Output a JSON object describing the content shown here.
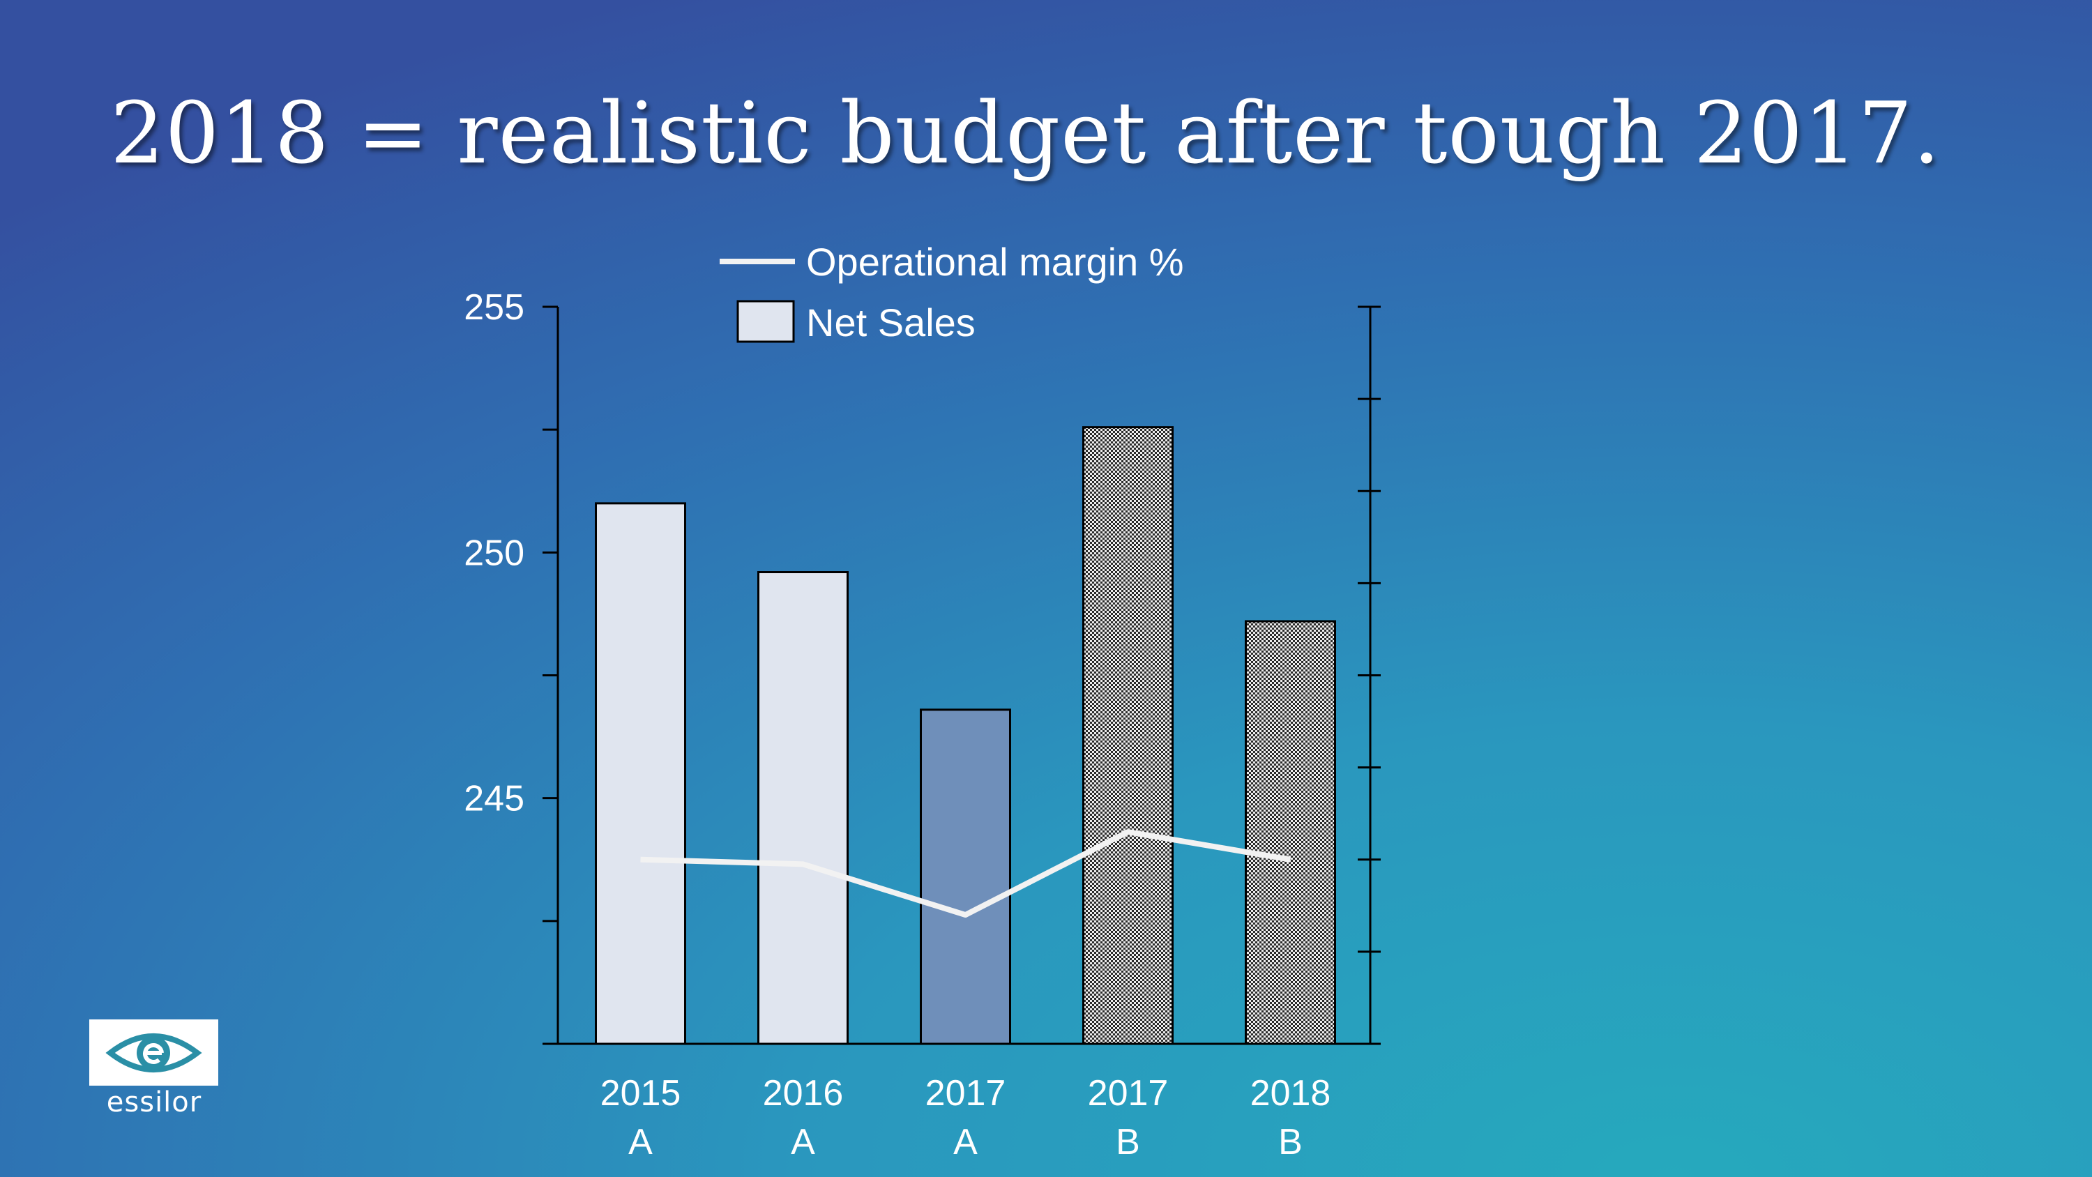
{
  "slide": {
    "title": "2018 = realistic budget after tough 2017.",
    "logo_text": "essilor"
  },
  "colors": {
    "actual_bar": "#e0e5ef",
    "tough_year_bar": "#6f8fba",
    "budget_bar_pattern": "checkered",
    "margin_line": "#f2f2f2"
  },
  "chart_data": {
    "type": "bar",
    "categories": [
      [
        "2015",
        "A"
      ],
      [
        "2016",
        "A"
      ],
      [
        "2017",
        "A"
      ],
      [
        "2017",
        "B"
      ],
      [
        "2018",
        "B"
      ]
    ],
    "series": [
      {
        "name": "Net Sales",
        "type": "bar",
        "axis": "left",
        "values": [
          251,
          249.6,
          246.8,
          252.55,
          248.6
        ],
        "styles": [
          "light",
          "light",
          "medium",
          "checkered",
          "checkered"
        ]
      },
      {
        "name": "Operational margin %",
        "type": "line",
        "axis": "right",
        "values": [
          2.0,
          1.95,
          1.4,
          2.3,
          2.0
        ]
      }
    ],
    "y_left": {
      "min": 240,
      "max": 255,
      "tick_values": [
        255,
        250,
        245
      ],
      "ticks": [
        "255",
        "250",
        "245"
      ]
    },
    "y_right": {
      "min": 0,
      "max": 8,
      "tick_labels_shown": false
    },
    "legend": {
      "placement": "top-center",
      "entries": [
        "Operational margin %",
        "Net Sales"
      ]
    },
    "grid": false
  }
}
